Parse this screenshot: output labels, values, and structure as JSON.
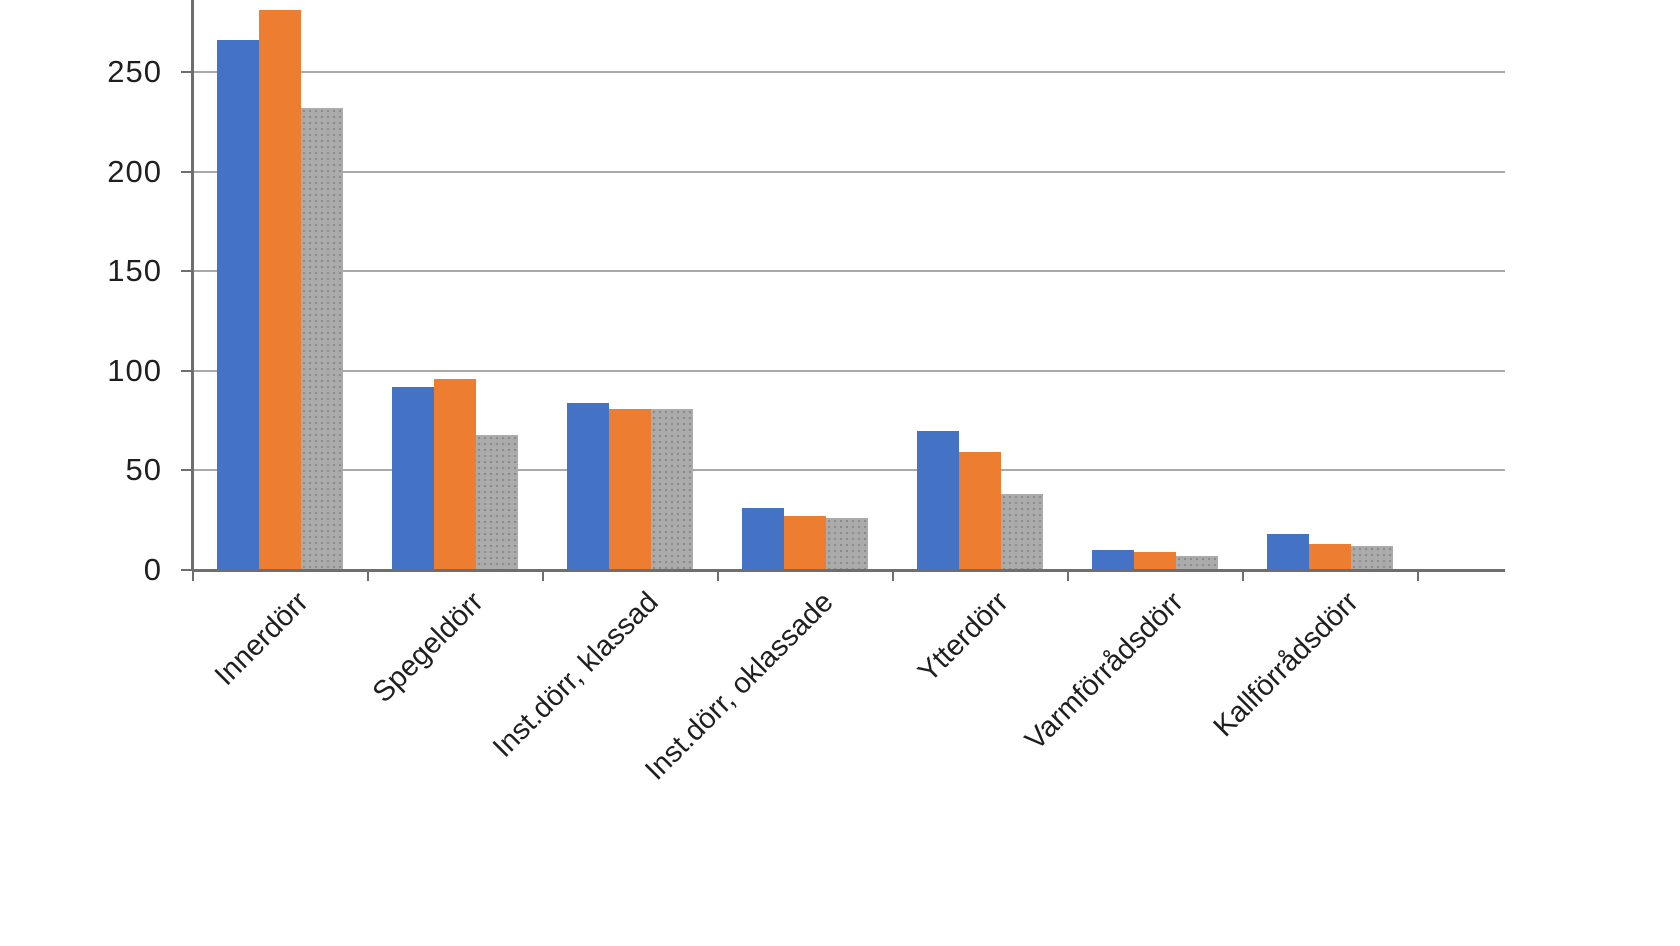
{
  "chart_data": {
    "type": "bar",
    "title": "",
    "categories": [
      "Innerdörr",
      "Spegeldörr",
      "Inst.dörr, klassad",
      "Inst.dörr, oklassade",
      "Ytterdörr",
      "Varmförrådsdörr",
      "Kallförrådsdörr"
    ],
    "series": [
      {
        "name": "blue",
        "color": "#4472C4",
        "pattern": "solid",
        "values": [
          266,
          92,
          84,
          31,
          70,
          10,
          18
        ]
      },
      {
        "name": "orange",
        "color": "#ED7D31",
        "pattern": "solid",
        "values": [
          281,
          96,
          81,
          27,
          59,
          9,
          13
        ]
      },
      {
        "name": "gray",
        "color": "#ABABAB",
        "pattern": "dotted",
        "values": [
          232,
          68,
          81,
          26,
          38,
          7,
          12
        ]
      }
    ],
    "y_axis": {
      "ticks": [
        0,
        50,
        100,
        150,
        200,
        250
      ],
      "min": 0,
      "max": 286,
      "gridlines": true
    },
    "x_axis_label": "",
    "y_axis_label": "",
    "legend": "none"
  }
}
